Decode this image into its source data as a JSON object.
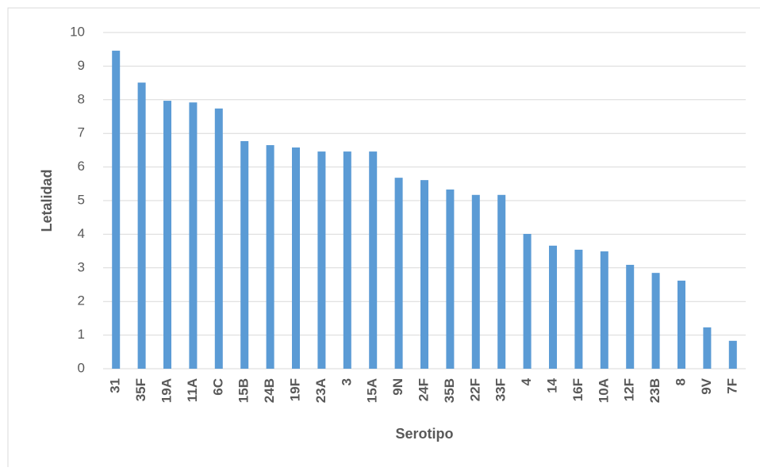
{
  "chart_data": {
    "type": "bar",
    "x_label": "Serotipo",
    "y_label": "Letalidad",
    "categories": [
      "31",
      "35F",
      "19A",
      "11A",
      "6C",
      "15B",
      "24B",
      "19F",
      "23A",
      "3",
      "15A",
      "9N",
      "24F",
      "35B",
      "22F",
      "33F",
      "4",
      "14",
      "16F",
      "10A",
      "12F",
      "23B",
      "8",
      "9V",
      "7F"
    ],
    "values": [
      9.46,
      8.51,
      7.97,
      7.92,
      7.74,
      6.77,
      6.65,
      6.58,
      6.46,
      6.46,
      6.46,
      5.68,
      5.61,
      5.33,
      5.17,
      5.17,
      4.01,
      3.66,
      3.54,
      3.49,
      3.09,
      2.85,
      2.62,
      1.23,
      0.83
    ],
    "color": "#5b9bd5",
    "ylim": [
      0,
      10
    ],
    "yticks": [
      0,
      1,
      2,
      3,
      4,
      5,
      6,
      7,
      8,
      9,
      10
    ],
    "grid": true
  }
}
